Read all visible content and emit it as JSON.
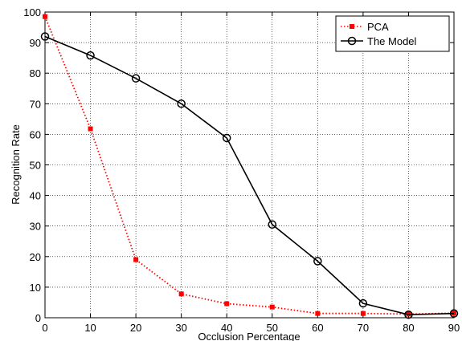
{
  "chart_data": {
    "type": "line",
    "title": "",
    "xlabel": "Occlusion Percentage",
    "ylabel": "Recognition Rate",
    "xlim": [
      0,
      90
    ],
    "ylim": [
      0,
      100
    ],
    "x_ticks": [
      0,
      10,
      20,
      30,
      40,
      50,
      60,
      70,
      80,
      90
    ],
    "y_ticks": [
      0,
      10,
      20,
      30,
      40,
      50,
      60,
      70,
      80,
      90,
      100
    ],
    "grid": true,
    "legend_position": "top-right",
    "x": [
      0,
      10,
      20,
      30,
      40,
      50,
      60,
      70,
      80,
      90
    ],
    "series": [
      {
        "name": "PCA",
        "values": [
          98.5,
          61.8,
          19.0,
          7.8,
          4.6,
          3.5,
          1.4,
          1.4,
          1.2,
          1.5
        ],
        "color": "#ff0000",
        "line_style": "dotted",
        "marker": "filled-square"
      },
      {
        "name": "The Model",
        "values": [
          92.0,
          85.8,
          78.3,
          70.0,
          58.8,
          30.5,
          18.5,
          4.7,
          1.0,
          1.4
        ],
        "color": "#000000",
        "line_style": "solid",
        "marker": "open-circle"
      }
    ]
  }
}
